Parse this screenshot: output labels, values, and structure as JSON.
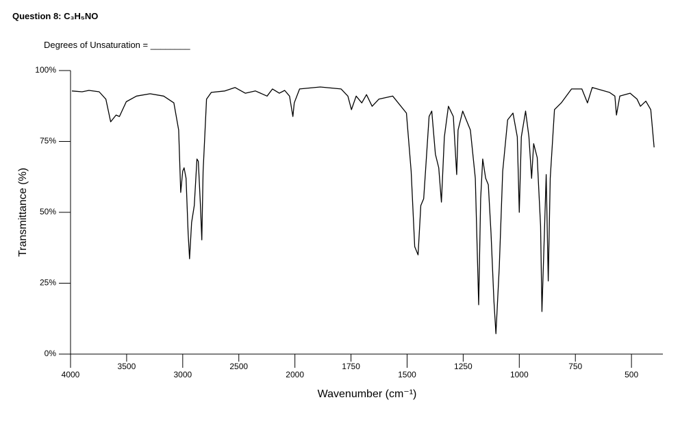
{
  "chart_data": {
    "type": "line",
    "title": "Question 8: C₃H₅NO",
    "subtitle": "Degrees of Unsaturation = ________",
    "xlabel": "Wavenumber (cm⁻¹)",
    "ylabel": "Transmittance (%)",
    "xlim": [
      4000,
      360
    ],
    "xticks": [
      4000,
      3500,
      3000,
      2500,
      2000,
      1750,
      1500,
      1250,
      1000,
      750,
      500
    ],
    "x_scale_change": {
      "at": 2000,
      "ratio": 2
    },
    "ylim": [
      0,
      100
    ],
    "yticks": [
      {
        "value": 0,
        "label": "0%"
      },
      {
        "value": 25,
        "label": "25%"
      },
      {
        "value": 50,
        "label": "50%"
      },
      {
        "value": 75,
        "label": "75%"
      },
      {
        "value": 100,
        "label": "100%"
      }
    ],
    "color": "#000000",
    "x": [
      3988,
      3897,
      3836,
      3745,
      3685,
      3642,
      3594,
      3564,
      3503,
      3412,
      3291,
      3170,
      3079,
      3036,
      3018,
      3000,
      2988,
      2970,
      2952,
      2939,
      2921,
      2897,
      2873,
      2861,
      2842,
      2830,
      2818,
      2788,
      2745,
      2624,
      2533,
      2442,
      2352,
      2248,
      2200,
      2139,
      2091,
      2048,
      2018,
      2006,
      1979,
      1887,
      1794,
      1764,
      1748,
      1727,
      1702,
      1681,
      1656,
      1626,
      1564,
      1503,
      1482,
      1466,
      1451,
      1439,
      1426,
      1417,
      1402,
      1390,
      1374,
      1359,
      1347,
      1334,
      1316,
      1294,
      1279,
      1273,
      1252,
      1218,
      1196,
      1187,
      1181,
      1172,
      1163,
      1150,
      1138,
      1126,
      1113,
      1104,
      1089,
      1074,
      1052,
      1028,
      1009,
      1000,
      991,
      972,
      957,
      945,
      936,
      920,
      905,
      899,
      887,
      880,
      871,
      862,
      843,
      813,
      767,
      721,
      696,
      675,
      598,
      574,
      567,
      552,
      506,
      475,
      460,
      436,
      414,
      399
    ],
    "values": [
      92.8,
      92.5,
      93,
      92.5,
      89.9,
      81.9,
      84.3,
      83.8,
      89,
      91,
      91.8,
      91,
      88.6,
      79,
      57,
      64.5,
      65.7,
      62,
      42.8,
      33.6,
      46.4,
      52.4,
      68.8,
      68,
      52.4,
      40.3,
      64.5,
      89.9,
      92.3,
      92.8,
      94,
      92,
      92.8,
      91,
      93.5,
      92,
      93,
      91,
      83.8,
      88.6,
      93.5,
      94.2,
      93.5,
      91,
      86.2,
      91,
      88.6,
      91.5,
      87.4,
      89.9,
      91,
      85,
      64.5,
      37.9,
      35,
      52.4,
      54.8,
      65.7,
      83.8,
      85.7,
      70.5,
      65.7,
      53.6,
      76.6,
      87.4,
      83.8,
      63.3,
      79,
      85.7,
      79,
      62,
      35.5,
      17.4,
      54.8,
      68.8,
      62,
      59.7,
      42.8,
      18.6,
      7.2,
      30.7,
      64.5,
      82.6,
      85,
      76.6,
      50,
      76.6,
      85.7,
      76.6,
      62,
      74.2,
      69.3,
      45.2,
      15,
      45.2,
      63.3,
      25.8,
      62,
      86.2,
      88.6,
      93.5,
      93.5,
      88.6,
      94,
      92.3,
      91,
      84.3,
      91,
      92,
      89.9,
      87.4,
      89.2,
      86.2,
      72.9
    ]
  }
}
